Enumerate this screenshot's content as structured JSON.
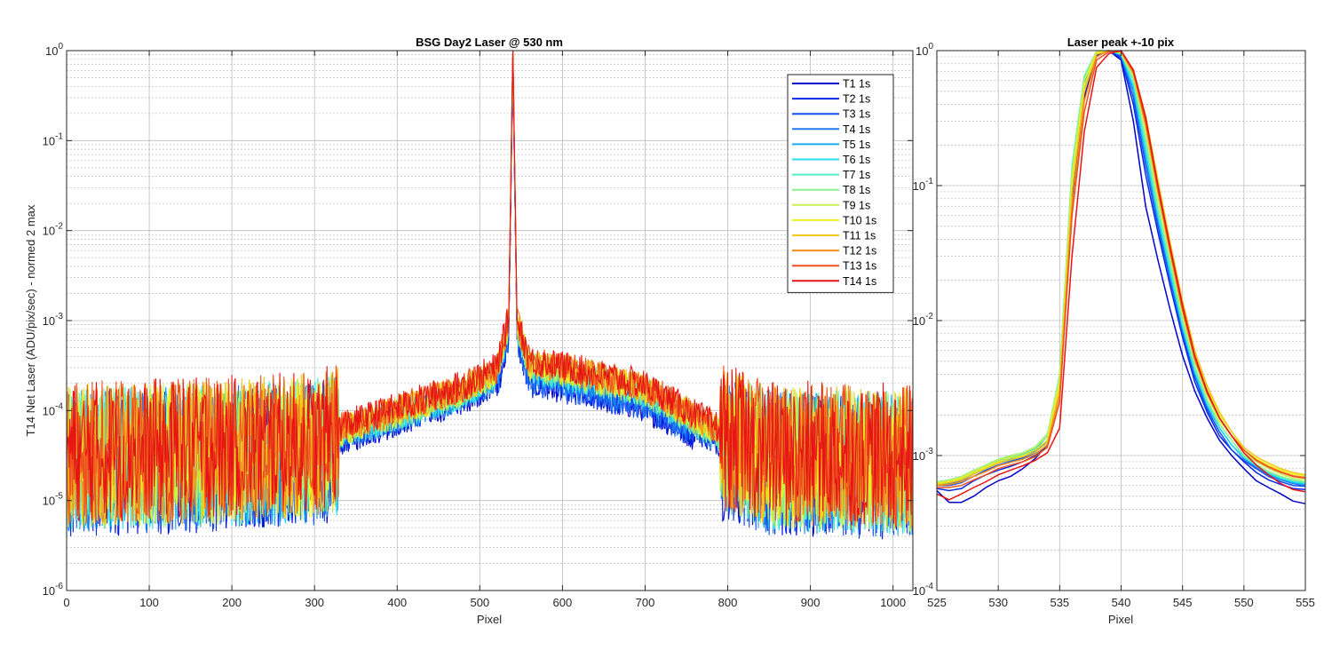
{
  "colors": {
    "background": "#ffffff",
    "axis": "#262626",
    "grid": "#bdbdbd",
    "series": [
      "#0000c8",
      "#0a28e6",
      "#1450f0",
      "#1e78f0",
      "#1eaaf0",
      "#28dcf0",
      "#50f0c8",
      "#8cf08c",
      "#c8f050",
      "#f0f01e",
      "#f0c81e",
      "#f08c1e",
      "#f0501e",
      "#e61414"
    ]
  },
  "chart_data": [
    {
      "type": "line",
      "title": "BSG  Day2 Laser @ 530 nm",
      "xlabel": "Pixel",
      "ylabel": "T14 Net Laser (ADU/pix/sec) - normed 2 max",
      "xlim": [
        0,
        1024
      ],
      "ylim": [
        1e-06,
        1
      ],
      "yscale": "log",
      "grid": true,
      "minor_grid": true,
      "legend_position": "top-right",
      "x_ticks": [
        "0",
        "100",
        "200",
        "300",
        "400",
        "500",
        "600",
        "700",
        "800",
        "900",
        "1000"
      ],
      "y_ticks": [
        {
          "base": "10",
          "exp": "-6"
        },
        {
          "base": "10",
          "exp": "-5"
        },
        {
          "base": "10",
          "exp": "-4"
        },
        {
          "base": "10",
          "exp": "-3"
        },
        {
          "base": "10",
          "exp": "-2"
        },
        {
          "base": "10",
          "exp": "-1"
        },
        {
          "base": "10",
          "exp": "0"
        }
      ],
      "peak_pixel": 540,
      "envelope": [
        {
          "x": 0,
          "y": 3.5e-05
        },
        {
          "x": 150,
          "y": 3.8e-05
        },
        {
          "x": 300,
          "y": 4.5e-05
        },
        {
          "x": 400,
          "y": 9e-05
        },
        {
          "x": 480,
          "y": 0.00016
        },
        {
          "x": 520,
          "y": 0.00025
        },
        {
          "x": 535,
          "y": 0.0009
        },
        {
          "x": 540,
          "y": 1.0
        },
        {
          "x": 545,
          "y": 0.0009
        },
        {
          "x": 560,
          "y": 0.0003
        },
        {
          "x": 600,
          "y": 0.00026
        },
        {
          "x": 700,
          "y": 0.00016
        },
        {
          "x": 780,
          "y": 6e-05
        },
        {
          "x": 850,
          "y": 3.5e-05
        },
        {
          "x": 1024,
          "y": 3.2e-05
        }
      ],
      "series": [
        {
          "name": "T1 1s"
        },
        {
          "name": "T2 1s"
        },
        {
          "name": "T3 1s"
        },
        {
          "name": "T4 1s"
        },
        {
          "name": "T5 1s"
        },
        {
          "name": "T6 1s"
        },
        {
          "name": "T7 1s"
        },
        {
          "name": "T8 1s"
        },
        {
          "name": "T9 1s"
        },
        {
          "name": "T10 1s"
        },
        {
          "name": "T11 1s"
        },
        {
          "name": "T12 1s"
        },
        {
          "name": "T13 1s"
        },
        {
          "name": "T14 1s"
        }
      ]
    },
    {
      "type": "line",
      "title": "Laser peak +-10 pix",
      "xlabel": "Pixel",
      "ylabel": "",
      "xlim": [
        525,
        555
      ],
      "ylim": [
        0.0001,
        1
      ],
      "yscale": "log",
      "grid": true,
      "minor_grid": true,
      "x_ticks": [
        "525",
        "530",
        "535",
        "540",
        "545",
        "550",
        "555"
      ],
      "y_ticks": [
        {
          "base": "10",
          "exp": "-4"
        },
        {
          "base": "10",
          "exp": "-3"
        },
        {
          "base": "10",
          "exp": "-2"
        },
        {
          "base": "10",
          "exp": "-1"
        },
        {
          "base": "10",
          "exp": "0"
        }
      ],
      "x": [
        525,
        526,
        527,
        528,
        529,
        530,
        531,
        532,
        533,
        534,
        535,
        536,
        537,
        538,
        539,
        540,
        541,
        542,
        543,
        544,
        545,
        546,
        547,
        548,
        549,
        550,
        551,
        552,
        553,
        554,
        555
      ],
      "series_values": [
        [
          0.00055,
          0.00045,
          0.00045,
          0.0005,
          0.00058,
          0.00065,
          0.0007,
          0.0008,
          0.00095,
          0.0012,
          0.0032,
          0.08,
          0.45,
          0.92,
          1.0,
          0.85,
          0.3,
          0.07,
          0.028,
          0.012,
          0.0055,
          0.003,
          0.0019,
          0.0013,
          0.001,
          0.0008,
          0.00065,
          0.00058,
          0.00052,
          0.00046,
          0.00044
        ],
        [
          0.00057,
          0.00055,
          0.00057,
          0.00065,
          0.00072,
          0.00078,
          0.00083,
          0.0009,
          0.001,
          0.0012,
          0.0034,
          0.09,
          0.5,
          0.94,
          1.0,
          0.88,
          0.4,
          0.12,
          0.045,
          0.018,
          0.0075,
          0.0035,
          0.0021,
          0.0014,
          0.0011,
          0.0009,
          0.00075,
          0.00066,
          0.00061,
          0.00057,
          0.00056
        ],
        [
          0.0006,
          0.0006,
          0.00063,
          0.0007,
          0.00078,
          0.00085,
          0.0009,
          0.00096,
          0.00105,
          0.0013,
          0.0036,
          0.1,
          0.55,
          0.95,
          1.0,
          0.9,
          0.45,
          0.14,
          0.05,
          0.02,
          0.008,
          0.0038,
          0.0022,
          0.0015,
          0.0011,
          0.00092,
          0.0008,
          0.0007,
          0.00064,
          0.0006,
          0.00059
        ],
        [
          0.00061,
          0.00062,
          0.00065,
          0.00073,
          0.0008,
          0.00088,
          0.00092,
          0.00098,
          0.00108,
          0.0013,
          0.0037,
          0.11,
          0.58,
          0.96,
          1.0,
          0.92,
          0.5,
          0.16,
          0.055,
          0.021,
          0.0085,
          0.004,
          0.0023,
          0.0016,
          0.0012,
          0.00095,
          0.00082,
          0.00072,
          0.00066,
          0.00062,
          0.0006
        ],
        [
          0.00062,
          0.00063,
          0.00067,
          0.00075,
          0.00082,
          0.0009,
          0.00095,
          0.001,
          0.0011,
          0.0014,
          0.0038,
          0.12,
          0.6,
          0.97,
          1.0,
          0.93,
          0.52,
          0.17,
          0.058,
          0.022,
          0.0088,
          0.0041,
          0.0024,
          0.0016,
          0.0012,
          0.00096,
          0.00083,
          0.00073,
          0.00067,
          0.00063,
          0.00061
        ],
        [
          0.00063,
          0.00064,
          0.00068,
          0.00076,
          0.00083,
          0.00092,
          0.00097,
          0.00102,
          0.00112,
          0.0014,
          0.0039,
          0.13,
          0.62,
          0.98,
          1.0,
          0.94,
          0.55,
          0.18,
          0.06,
          0.023,
          0.009,
          0.0042,
          0.0024,
          0.0016,
          0.0012,
          0.00097,
          0.00084,
          0.00074,
          0.00068,
          0.00064,
          0.00062
        ],
        [
          0.00064,
          0.00065,
          0.00069,
          0.00077,
          0.00084,
          0.00093,
          0.00098,
          0.00104,
          0.00115,
          0.0014,
          0.004,
          0.14,
          0.65,
          0.99,
          1.0,
          0.95,
          0.6,
          0.2,
          0.065,
          0.025,
          0.0095,
          0.0044,
          0.0025,
          0.0017,
          0.0013,
          0.00098,
          0.00085,
          0.00075,
          0.00069,
          0.00065,
          0.00063
        ],
        [
          0.00064,
          0.00066,
          0.0007,
          0.00078,
          0.00085,
          0.00094,
          0.001,
          0.00105,
          0.00116,
          0.00145,
          0.0039,
          0.13,
          0.63,
          0.99,
          1.0,
          0.95,
          0.62,
          0.22,
          0.07,
          0.027,
          0.01,
          0.0046,
          0.0026,
          0.0017,
          0.0013,
          0.001,
          0.00086,
          0.00076,
          0.0007,
          0.00066,
          0.00064
        ],
        [
          0.00063,
          0.00065,
          0.00069,
          0.00077,
          0.00084,
          0.00093,
          0.00099,
          0.00104,
          0.00115,
          0.0014,
          0.0037,
          0.12,
          0.6,
          0.98,
          1.0,
          0.96,
          0.65,
          0.25,
          0.08,
          0.03,
          0.011,
          0.005,
          0.0028,
          0.0018,
          0.0014,
          0.00105,
          0.0009,
          0.0008,
          0.00073,
          0.00068,
          0.00066
        ],
        [
          0.00062,
          0.00064,
          0.00068,
          0.00075,
          0.00082,
          0.0009,
          0.00096,
          0.001,
          0.0011,
          0.0013,
          0.0034,
          0.1,
          0.55,
          0.96,
          1.0,
          0.97,
          0.7,
          0.3,
          0.1,
          0.035,
          0.013,
          0.0058,
          0.0032,
          0.002,
          0.0015,
          0.0011,
          0.00095,
          0.00085,
          0.00078,
          0.00073,
          0.00071
        ],
        [
          0.00061,
          0.00063,
          0.00066,
          0.00073,
          0.0008,
          0.00088,
          0.00093,
          0.00098,
          0.00106,
          0.00125,
          0.0031,
          0.09,
          0.5,
          0.94,
          1.0,
          0.97,
          0.72,
          0.33,
          0.11,
          0.038,
          0.014,
          0.006,
          0.0033,
          0.0021,
          0.0015,
          0.00115,
          0.00098,
          0.00088,
          0.0008,
          0.00075,
          0.00072
        ],
        [
          0.0006,
          0.00061,
          0.00064,
          0.0007,
          0.00076,
          0.00084,
          0.00089,
          0.00094,
          0.00102,
          0.0012,
          0.0028,
          0.07,
          0.42,
          0.9,
          1.0,
          0.98,
          0.68,
          0.28,
          0.09,
          0.032,
          0.012,
          0.0053,
          0.003,
          0.0019,
          0.0014,
          0.0011,
          0.00093,
          0.00083,
          0.00076,
          0.00071,
          0.00069
        ],
        [
          0.00058,
          0.00058,
          0.0006,
          0.00066,
          0.00072,
          0.0008,
          0.00085,
          0.0009,
          0.00098,
          0.00115,
          0.0025,
          0.06,
          0.35,
          0.85,
          0.98,
          1.0,
          0.7,
          0.3,
          0.095,
          0.033,
          0.012,
          0.0052,
          0.0029,
          0.0019,
          0.0014,
          0.0011,
          0.00092,
          0.00082,
          0.00075,
          0.0007,
          0.00068
        ],
        [
          0.00052,
          0.00047,
          0.00052,
          0.00058,
          0.00064,
          0.00072,
          0.00078,
          0.00084,
          0.00092,
          0.00105,
          0.0016,
          0.03,
          0.25,
          0.75,
          0.95,
          1.0,
          0.72,
          0.32,
          0.1,
          0.035,
          0.013,
          0.0055,
          0.003,
          0.0019,
          0.0014,
          0.00105,
          0.00085,
          0.00072,
          0.00062,
          0.00056,
          0.00054
        ]
      ]
    }
  ]
}
